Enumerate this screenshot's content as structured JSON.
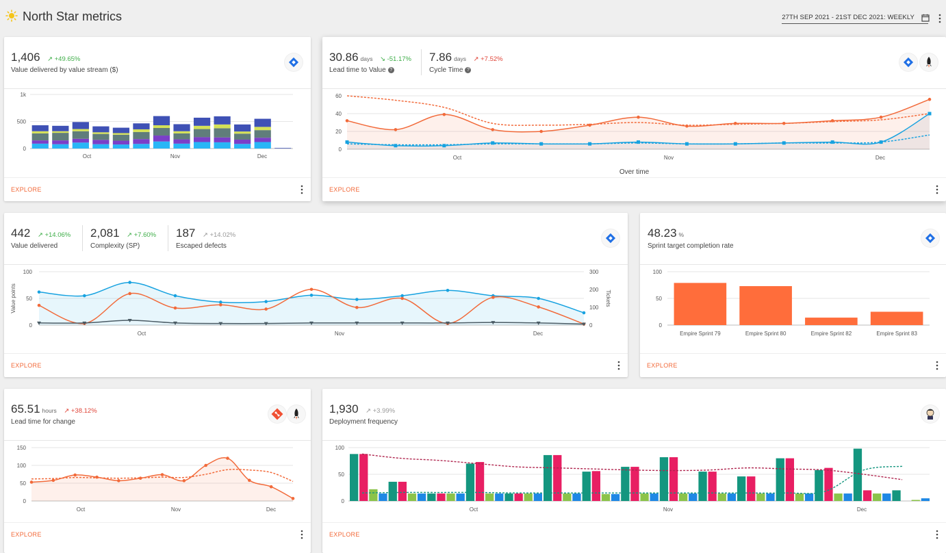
{
  "header": {
    "title": "North Star metrics",
    "date_range": "27TH SEP 2021 - 21ST DEC 2021: WEEKLY"
  },
  "colors": {
    "orange": "#f26a3a",
    "blue": "#17a2e0",
    "green": "#3fae49",
    "red": "#e0463a",
    "teal": "#14967f",
    "pink": "#e81f63",
    "lime": "#8bc34a",
    "stack_blue": "#29b6f6",
    "stack_purple": "#7a3fc8",
    "stack_gray": "#607d7b",
    "stack_yellow": "#d4e157",
    "stack_indigo": "#3f51b5"
  },
  "cards": {
    "value_stream": {
      "value": "1,406",
      "delta": "+49.65%",
      "label": "Value delivered by value stream ($)",
      "explore": "EXPLORE",
      "icon": "jira-icon"
    },
    "lead_time": {
      "m1": {
        "value": "30.86",
        "unit": "days",
        "delta": "-51.17%",
        "label": "Lead time to Value"
      },
      "m2": {
        "value": "7.86",
        "unit": "days",
        "delta": "+7.52%",
        "label": "Cycle Time"
      },
      "xtitle": "Over time",
      "explore": "EXPLORE"
    },
    "value_delivered": {
      "m1": {
        "value": "442",
        "delta": "+14.06%",
        "label": "Value delivered"
      },
      "m2": {
        "value": "2,081",
        "delta": "+7.60%",
        "label": "Complexity (SP)"
      },
      "m3": {
        "value": "187",
        "delta": "+14.02%",
        "label": "Escaped defects"
      },
      "explore": "EXPLORE"
    },
    "sprint": {
      "value": "48.23",
      "unit": "%",
      "label": "Sprint target completion rate",
      "explore": "EXPLORE"
    },
    "lead_change": {
      "value": "65.51",
      "unit": "hours",
      "delta": "+38.12%",
      "label": "Lead time for change",
      "explore": "EXPLORE"
    },
    "deploy": {
      "value": "1,930",
      "delta": "+3.99%",
      "label": "Deployment frequency",
      "explore": "EXPLORE"
    }
  },
  "chart_data": [
    {
      "id": "value_stream",
      "type": "bar",
      "stacked": true,
      "x_ticks": [
        "Oct",
        "Nov",
        "Dec"
      ],
      "y_ticks": [
        "0",
        "500",
        "1k"
      ],
      "ylim": [
        0,
        1000
      ],
      "series": [
        {
          "color": "#29b6f6",
          "values": [
            90,
            80,
            110,
            80,
            75,
            85,
            130,
            90,
            120,
            115,
            85,
            120,
            0
          ]
        },
        {
          "color": "#7a3fc8",
          "values": [
            60,
            70,
            70,
            80,
            70,
            90,
            110,
            80,
            90,
            90,
            80,
            80,
            0
          ]
        },
        {
          "color": "#607d7b",
          "values": [
            130,
            140,
            140,
            110,
            110,
            130,
            140,
            110,
            150,
            170,
            110,
            140,
            0
          ]
        },
        {
          "color": "#d4e157",
          "values": [
            40,
            30,
            40,
            30,
            30,
            50,
            50,
            40,
            60,
            70,
            40,
            60,
            0
          ]
        },
        {
          "color": "#3f51b5",
          "values": [
            110,
            100,
            130,
            110,
            100,
            110,
            170,
            130,
            150,
            150,
            130,
            150,
            10
          ]
        }
      ]
    },
    {
      "id": "lead_time",
      "type": "line",
      "x_ticks": [
        "Oct",
        "Nov",
        "Dec"
      ],
      "y_ticks": [
        "0",
        "20",
        "40",
        "60"
      ],
      "ylim": [
        0,
        60
      ],
      "xlabel": "Over time",
      "series": [
        {
          "color": "#f26a3a",
          "values": [
            32,
            22,
            39,
            22,
            20,
            27,
            36,
            26,
            29,
            29,
            32,
            36,
            56
          ]
        },
        {
          "color": "#f26a3a",
          "dashed": true,
          "values": [
            60,
            55,
            47,
            29,
            27,
            28,
            30,
            27,
            28,
            29,
            31,
            33,
            40
          ]
        },
        {
          "color": "#17a2e0",
          "values": [
            8,
            4,
            4,
            7,
            6,
            6,
            8,
            6,
            6,
            7,
            8,
            8,
            40
          ]
        },
        {
          "color": "#17a2e0",
          "dashed": true,
          "values": [
            6,
            5,
            5,
            6,
            6,
            6,
            7,
            6,
            6,
            7,
            7,
            8,
            16
          ]
        }
      ]
    },
    {
      "id": "value_delivered",
      "type": "line",
      "x_ticks": [
        "Oct",
        "Nov",
        "Dec"
      ],
      "y_ticks": [
        "0",
        "50",
        "100"
      ],
      "y2_ticks": [
        "0",
        "100",
        "200",
        "300"
      ],
      "ylabel": "Value points",
      "y2label": "Tickets",
      "series": [
        {
          "color": "#17a2e0",
          "values": [
            62,
            55,
            80,
            55,
            43,
            44,
            56,
            48,
            55,
            65,
            55,
            50,
            23
          ]
        },
        {
          "color": "#f26a3a",
          "values": [
            37,
            3,
            59,
            32,
            38,
            30,
            67,
            33,
            50,
            3,
            52,
            34,
            2
          ]
        },
        {
          "color": "#4a5b64",
          "values": [
            4,
            4,
            9,
            4,
            3,
            3,
            4,
            4,
            4,
            4,
            5,
            4,
            2
          ]
        }
      ]
    },
    {
      "id": "sprint",
      "type": "bar",
      "categories": [
        "Empire Sprint 79",
        "Empire Sprint 80",
        "Empire Sprint 82",
        "Empire Sprint 83"
      ],
      "values": [
        79,
        73,
        14,
        25
      ],
      "y_ticks": [
        "0",
        "50",
        "100"
      ],
      "ylim": [
        0,
        100
      ],
      "color": "#ff6d3b"
    },
    {
      "id": "lead_change",
      "type": "line",
      "x_ticks": [
        "Oct",
        "Nov",
        "Dec"
      ],
      "y_ticks": [
        "0",
        "50",
        "100",
        "150"
      ],
      "ylim": [
        0,
        150
      ],
      "series": [
        {
          "color": "#f26a3a",
          "values": [
            53,
            58,
            73,
            67,
            57,
            64,
            74,
            57,
            100,
            120,
            58,
            40,
            7
          ]
        },
        {
          "color": "#f26a3a",
          "dashed": true,
          "values": [
            62,
            63,
            66,
            65,
            64,
            65,
            67,
            66,
            75,
            88,
            87,
            80,
            55
          ]
        }
      ]
    },
    {
      "id": "deploy",
      "type": "bar",
      "x_ticks": [
        "Oct",
        "Nov",
        "Dec"
      ],
      "y_ticks": [
        "0",
        "50",
        "100"
      ],
      "ylim": [
        0,
        100
      ],
      "groups": [
        [
          88,
          88,
          22,
          14
        ],
        [
          36,
          36,
          14,
          14
        ],
        [
          14,
          14,
          14,
          14
        ],
        [
          70,
          73,
          14,
          14
        ],
        [
          14,
          14,
          14,
          14
        ],
        [
          86,
          86,
          14,
          14
        ],
        [
          55,
          56,
          13,
          13
        ],
        [
          64,
          64,
          14,
          14
        ],
        [
          82,
          82,
          14,
          14
        ],
        [
          55,
          55,
          14,
          14
        ],
        [
          46,
          46,
          14,
          14
        ],
        [
          80,
          80,
          14,
          14
        ],
        [
          58,
          62,
          14,
          14
        ],
        [
          98,
          20,
          14,
          14
        ],
        [
          20,
          0,
          2,
          5
        ]
      ],
      "group_colors": [
        "#14967f",
        "#e81f63",
        "#8bc34a",
        "#1e88e5"
      ],
      "trend_lines": [
        {
          "color": "#b0264f",
          "dashed": true,
          "values": [
            88,
            80,
            76,
            70,
            64,
            62,
            60,
            58,
            57,
            58,
            62,
            60,
            58,
            50,
            40
          ]
        },
        {
          "color": "#14967f",
          "dashed": true,
          "values": [
            15,
            16,
            16,
            16,
            15,
            15,
            15,
            15,
            15,
            15,
            15,
            15,
            18,
            58,
            65
          ]
        }
      ]
    }
  ]
}
